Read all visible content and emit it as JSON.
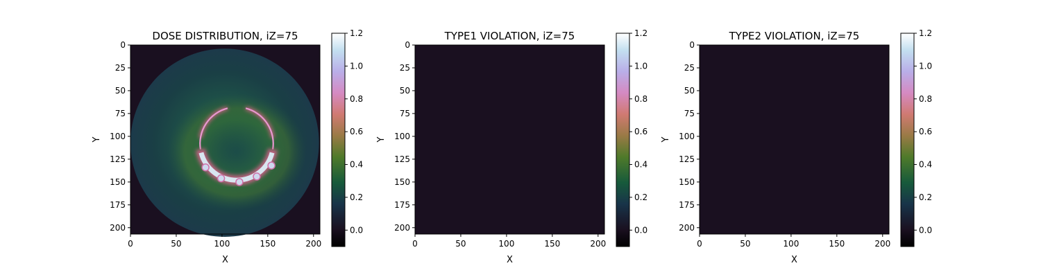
{
  "chart_data": [
    {
      "type": "heatmap",
      "title": "DOSE DISTRIBUTION, iZ=75",
      "xlabel": "X",
      "ylabel": "Y",
      "xlim": [
        0,
        207
      ],
      "ylim": [
        207,
        0
      ],
      "x_ticks": [
        0,
        50,
        100,
        150,
        200
      ],
      "y_ticks": [
        0,
        25,
        50,
        75,
        100,
        125,
        150,
        175,
        200
      ],
      "colormap": "cubehelix",
      "clim": [
        -0.1,
        1.2
      ],
      "colorbar_ticks": [
        "0.0",
        "0.2",
        "0.4",
        "0.6",
        "0.8",
        "1.0",
        "1.2"
      ],
      "data_description": {
        "background_value": 0.0,
        "body_disc": {
          "center": [
            103,
            107
          ],
          "radius": 103,
          "value_range": [
            0.1,
            0.3
          ]
        },
        "high_dose_ring": {
          "center": [
            116,
            108
          ],
          "radius": 40,
          "value_range": [
            0.6,
            1.1
          ]
        }
      }
    },
    {
      "type": "heatmap",
      "title": "TYPE1 VIOLATION, iZ=75",
      "xlabel": "X",
      "ylabel": "Y",
      "xlim": [
        0,
        207
      ],
      "ylim": [
        207,
        0
      ],
      "x_ticks": [
        0,
        50,
        100,
        150,
        200
      ],
      "y_ticks": [
        0,
        25,
        50,
        75,
        100,
        125,
        150,
        175,
        200
      ],
      "colormap": "cubehelix",
      "clim": [
        -0.1,
        1.2
      ],
      "colorbar_ticks": [
        "0.0",
        "0.2",
        "0.4",
        "0.6",
        "0.8",
        "1.0",
        "1.2"
      ],
      "data_description": {
        "uniform_value": 0.0
      }
    },
    {
      "type": "heatmap",
      "title": "TYPE2 VIOLATION, iZ=75",
      "xlabel": "X",
      "ylabel": "Y",
      "xlim": [
        0,
        207
      ],
      "ylim": [
        207,
        0
      ],
      "x_ticks": [
        0,
        50,
        100,
        150,
        200
      ],
      "y_ticks": [
        0,
        25,
        50,
        75,
        100,
        125,
        150,
        175,
        200
      ],
      "colormap": "cubehelix",
      "clim": [
        -0.1,
        1.2
      ],
      "colorbar_ticks": [
        "0.0",
        "0.2",
        "0.4",
        "0.6",
        "0.8",
        "1.0",
        "1.2"
      ],
      "data_description": {
        "uniform_value": 0.0
      }
    }
  ],
  "colors": {
    "background_zero": "#1a1020",
    "body_low": "#163a43",
    "ring_mid": "#c8708a",
    "ring_high": "#d8e6f0"
  }
}
